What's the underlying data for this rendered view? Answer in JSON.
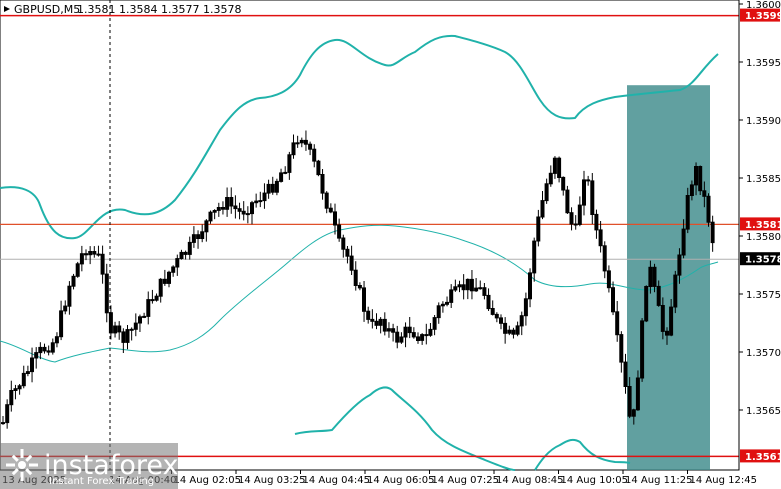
{
  "header": {
    "symbol_timeframe": "GBPUSD,M5",
    "ohlc": "1.3581 1.3584 1.3577 1.3578"
  },
  "price_axis": {
    "ticks": [
      "1.3600",
      "1.3595",
      "1.3590",
      "1.3585",
      "1.3580",
      "1.3575",
      "1.3570",
      "1.3565"
    ],
    "badges": [
      {
        "label": "1.3599",
        "color": "#e01010",
        "price": 1.3599
      },
      {
        "label": "1.3581",
        "color": "#e01010",
        "price": 1.3581
      },
      {
        "label": "1.3578",
        "color": "#000000",
        "price": 1.3578
      },
      {
        "label": "1.3561",
        "color": "#e01010",
        "price": 1.3561
      }
    ]
  },
  "time_axis": {
    "first_label": "13 Aug 2025",
    "labels": [
      "14 Aug 00:40",
      "14 Aug 02:05",
      "14 Aug 03:25",
      "14 Aug 04:45",
      "14 Aug 06:05",
      "14 Aug 07:25",
      "14 Aug 08:45",
      "14 Aug 10:05",
      "14 Aug 11:25",
      "14 Aug 12:45"
    ]
  },
  "levels": {
    "resistance": 1.3599,
    "pivot": 1.3581,
    "support": 1.3561,
    "current_price": 1.3578,
    "colors": {
      "resistance": "#e01010",
      "pivot": "#e0502a",
      "support": "#e01010",
      "current": "#b0b0b0"
    }
  },
  "highlight_zone": {
    "from_price": 1.3561,
    "to_price": 1.3593,
    "color": "#3e8b8b"
  },
  "indicator_color": "#20b2aa",
  "candle_color": "#000000",
  "watermark": {
    "brand": "instaforex",
    "tagline": "Instant Forex Trading"
  }
}
